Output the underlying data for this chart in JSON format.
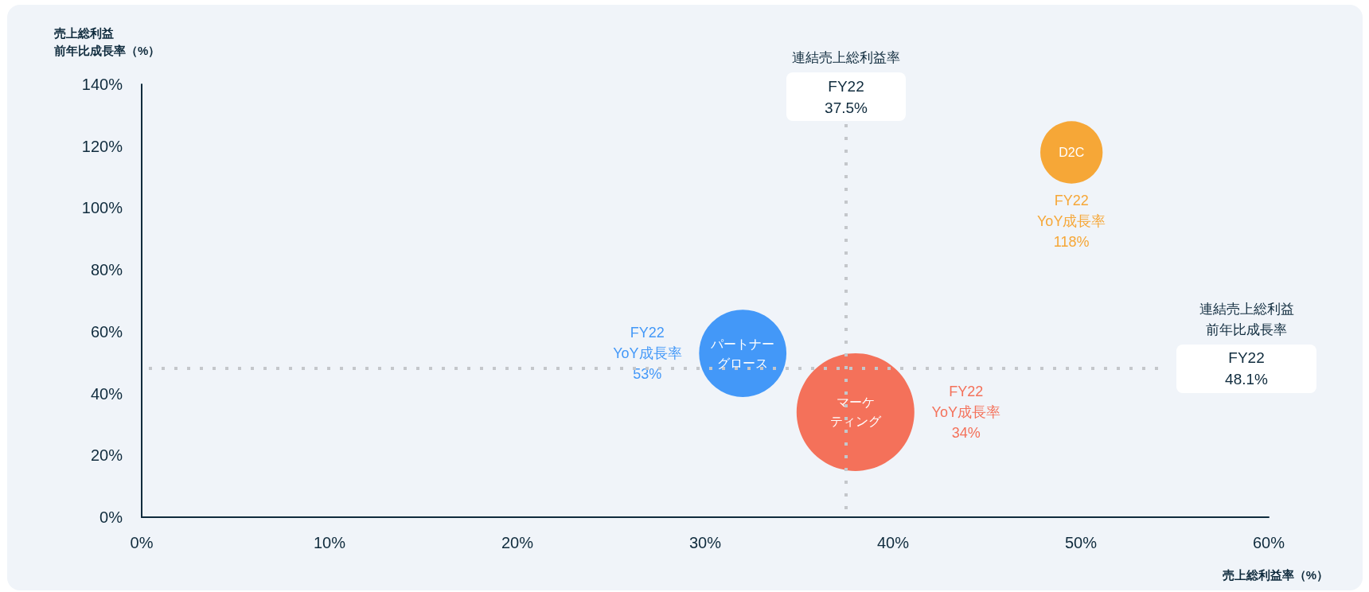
{
  "chart_data": {
    "type": "bubble",
    "xlabel": "売上総利益率（%）",
    "ylabel": "売上総利益前年比成長率（%）",
    "xlim": [
      0,
      60
    ],
    "xticks": [
      {
        "value": 0,
        "label": "0%"
      },
      {
        "value": 10,
        "label": "10%"
      },
      {
        "value": 20,
        "label": "20%"
      },
      {
        "value": 30,
        "label": "30%"
      },
      {
        "value": 40,
        "label": "40%"
      },
      {
        "value": 50,
        "label": "50%"
      },
      {
        "value": 60,
        "label": "60%"
      }
    ],
    "ylim": [
      0,
      140
    ],
    "yticks": [
      {
        "value": 0,
        "label": "0%"
      },
      {
        "value": 20,
        "label": "20%"
      },
      {
        "value": 40,
        "label": "40%"
      },
      {
        "value": 60,
        "label": "60%"
      },
      {
        "value": 80,
        "label": "80%"
      },
      {
        "value": 100,
        "label": "100%"
      },
      {
        "value": 120,
        "label": "120%"
      },
      {
        "value": 140,
        "label": "140%"
      }
    ],
    "grid": false,
    "legend": false,
    "marker": "circle",
    "series": [
      {
        "name": "パートナーグロース",
        "color": "#4398f8",
        "x": [
          32
        ],
        "values": [
          53
        ],
        "sizes": [
          0.55
        ],
        "value_labels": [
          "FY22\nYoY成長率\n53%"
        ]
      },
      {
        "name": "マーケティング",
        "color": "#f4715a",
        "x": [
          38
        ],
        "values": [
          34
        ],
        "sizes": [
          1
        ],
        "value_labels": [
          "FY22\nYoY成長率\n34%"
        ]
      },
      {
        "name": "D2C",
        "color": "#f6a737",
        "x": [
          49.5
        ],
        "values": [
          118
        ],
        "sizes": [
          0.28
        ],
        "value_labels": [
          "FY22\nYoY成長率\n118%"
        ]
      }
    ],
    "ref_lines": [
      {
        "axis": "x",
        "value": 37.5,
        "label": "連結売上総利益率\nFY22\n37.5%",
        "color": "#c4c7cb",
        "line_style": "dotted"
      },
      {
        "axis": "y",
        "value": 48.1,
        "label": "連結売上総利益前年比成長率\nFY22\n48.1%",
        "color": "#c4c7cb",
        "line_style": "dotted"
      }
    ]
  }
}
